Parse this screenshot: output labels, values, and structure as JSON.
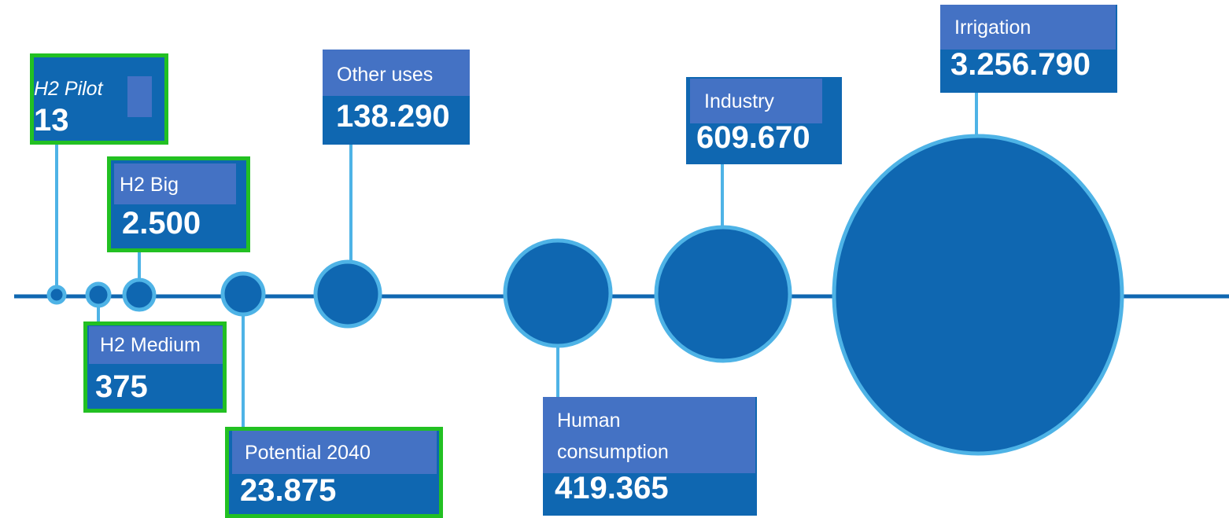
{
  "nodes": [
    {
      "label": "H2 Pilot",
      "value": "13"
    },
    {
      "label": "H2 Medium",
      "value": "375"
    },
    {
      "label": "H2 Big",
      "value": "2.500"
    },
    {
      "label": "Potential 2040",
      "value": "23.875"
    },
    {
      "label": "Other uses",
      "value": "138.290"
    },
    {
      "label": "Human consumption",
      "value": "419.365"
    },
    {
      "label": "Industry",
      "value": "609.670"
    },
    {
      "label": "Irrigation",
      "value": "3.256.790"
    }
  ]
}
